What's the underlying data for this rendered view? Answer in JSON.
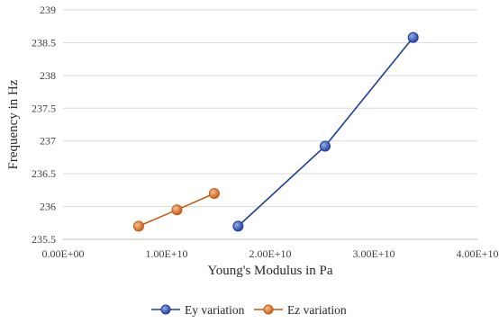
{
  "chart_data": {
    "type": "scatter",
    "xlabel": "Young's Modulus in Pa",
    "ylabel": "Frequency in Hz",
    "xlim": [
      0,
      40000000000
    ],
    "ylim": [
      235.5,
      239
    ],
    "x_ticks": [
      0,
      10000000000,
      20000000000,
      30000000000,
      40000000000
    ],
    "x_tick_labels": [
      "0.00E+00",
      "1.00E+10",
      "2.00E+10",
      "3.00E+10",
      "4.00E+10"
    ],
    "y_ticks": [
      235.5,
      236,
      236.5,
      237,
      237.5,
      238,
      238.5,
      239
    ],
    "y_tick_labels": [
      "235.5",
      "236",
      "236.5",
      "237",
      "237.5",
      "238",
      "238.5",
      "239"
    ],
    "grid": "horizontal",
    "legend_position": "bottom",
    "series": [
      {
        "name": "Ey variation",
        "color": "#1f3d99",
        "marker_color": "#2e5bbf",
        "x": [
          16900000000,
          25300000000,
          33800000000
        ],
        "y": [
          235.7,
          236.92,
          238.58
        ]
      },
      {
        "name": "Ez variation",
        "color": "#c55a11",
        "marker_color": "#e07a2c",
        "x": [
          7300000000,
          11000000000,
          14600000000
        ],
        "y": [
          235.7,
          235.95,
          236.2
        ]
      }
    ]
  }
}
